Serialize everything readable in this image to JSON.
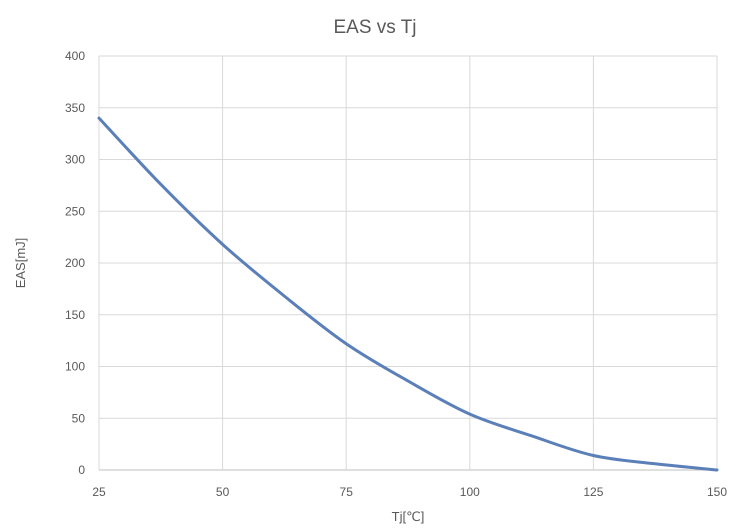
{
  "chart_data": {
    "type": "line",
    "title": "EAS vs Tj",
    "xlabel": "Tj[℃]",
    "ylabel": "EAS[mJ]",
    "xlim": [
      25,
      150
    ],
    "ylim": [
      0,
      400
    ],
    "x_ticks": [
      25,
      50,
      75,
      100,
      125,
      150
    ],
    "y_ticks": [
      0,
      50,
      100,
      150,
      200,
      250,
      300,
      350,
      400
    ],
    "grid": true,
    "legend": "none",
    "series": [
      {
        "color": "#5b7fb8",
        "x": [
          25,
          37.5,
          50,
          62.5,
          75,
          87.5,
          100,
          112.5,
          125,
          137.5,
          150
        ],
        "y": [
          340,
          276,
          218,
          168,
          122,
          86,
          54,
          33,
          14,
          6,
          0
        ]
      }
    ]
  }
}
